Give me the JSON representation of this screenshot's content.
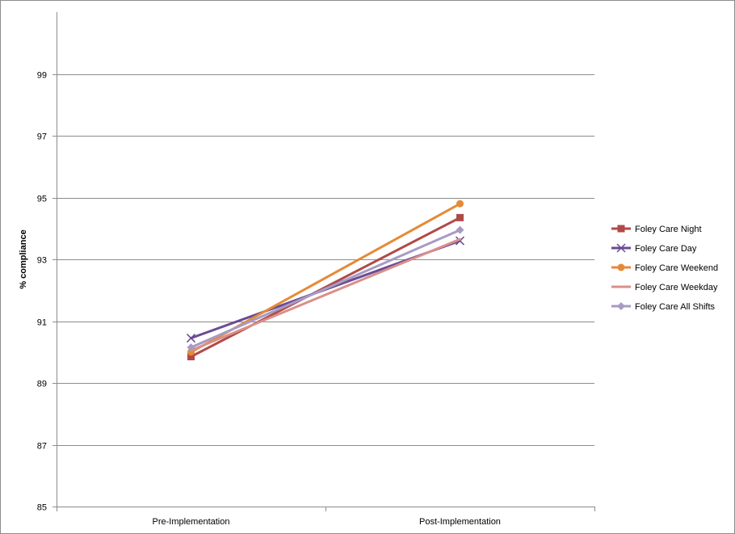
{
  "chart_data": {
    "type": "line",
    "title": "",
    "xlabel": "",
    "ylabel": "% compliance",
    "categories": [
      "Pre-Implementation",
      "Post-Implementation"
    ],
    "ylim": [
      85,
      101
    ],
    "yticks": [
      85,
      87,
      89,
      91,
      93,
      95,
      97,
      99
    ],
    "grid": "horizontal",
    "legend_position": "right",
    "series": [
      {
        "name": "Foley Care Night",
        "values": [
          89.85,
          94.35
        ],
        "color": "#b04a48",
        "marker": "square"
      },
      {
        "name": "Foley Care Day",
        "values": [
          90.45,
          93.6
        ],
        "color": "#6a4b94",
        "marker": "x"
      },
      {
        "name": "Foley Care Weekend",
        "values": [
          90.0,
          94.8
        ],
        "color": "#e58a38",
        "marker": "circle"
      },
      {
        "name": "Foley Care Weekday",
        "values": [
          90.05,
          93.65
        ],
        "color": "#d9908a",
        "marker": "none"
      },
      {
        "name": "Foley Care All Shifts",
        "values": [
          90.15,
          93.95
        ],
        "color": "#a79bc4",
        "marker": "diamond"
      }
    ]
  }
}
